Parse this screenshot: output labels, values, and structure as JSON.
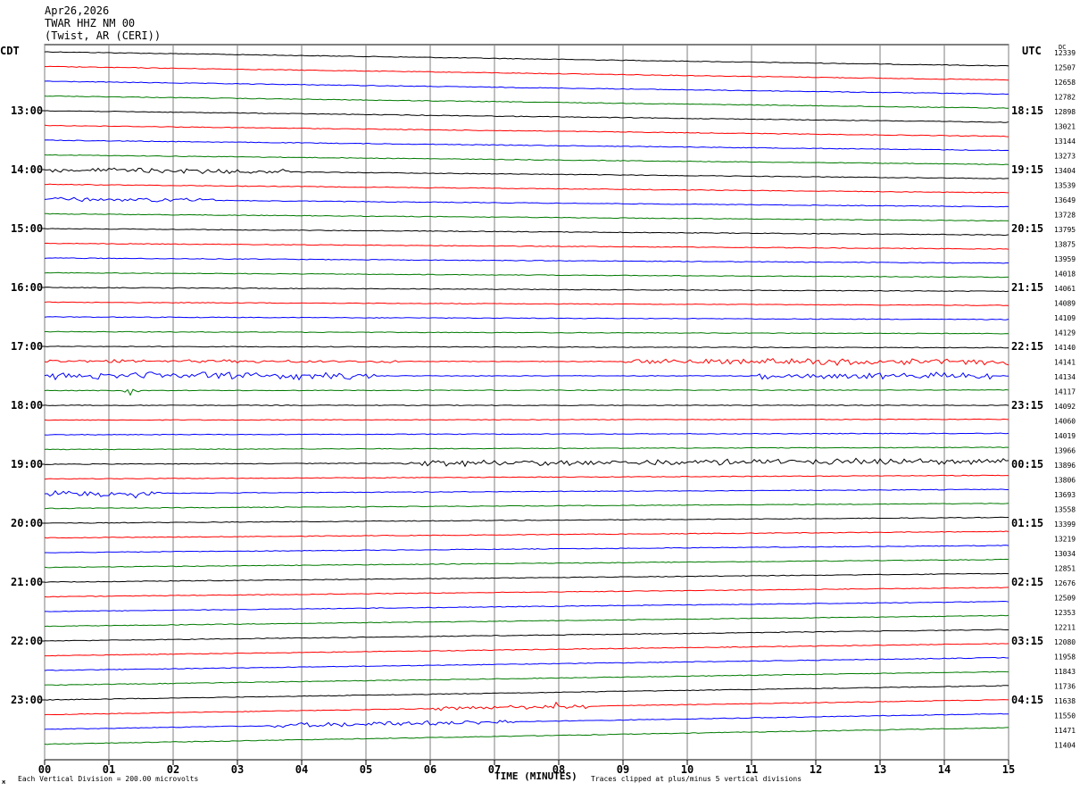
{
  "header": {
    "date": "Apr26,2026",
    "station": "TWAR HHZ NM 00",
    "location": "(Twist, AR (CERI))"
  },
  "labels": {
    "left_tz": "CDT",
    "right_tz": "UTC",
    "dc": "DC",
    "corner_mark": "ж"
  },
  "chart_data": {
    "type": "line",
    "xlabel": "TIME (MINUTES)",
    "xlim": [
      0,
      15
    ],
    "x_ticks": [
      "00",
      "01",
      "02",
      "03",
      "04",
      "05",
      "06",
      "07",
      "08",
      "09",
      "10",
      "11",
      "12",
      "13",
      "14",
      "15"
    ],
    "trace_colors": [
      "#000000",
      "#ff0000",
      "#0000ff",
      "#007a00"
    ],
    "left_hour_labels": [
      "13:00",
      "14:00",
      "15:00",
      "16:00",
      "17:00",
      "18:00",
      "19:00",
      "20:00",
      "21:00",
      "22:00",
      "23:00"
    ],
    "right_hour_labels": [
      "18:15",
      "19:15",
      "20:15",
      "21:15",
      "22:15",
      "23:15",
      "00:15",
      "01:15",
      "02:15",
      "03:15",
      "04:15"
    ],
    "dc_offsets": [
      12339,
      12507,
      12658,
      12782,
      12898,
      13021,
      13144,
      13273,
      13404,
      13539,
      13649,
      13728,
      13795,
      13875,
      13959,
      14018,
      14061,
      14089,
      14109,
      14129,
      14140,
      14141,
      14134,
      14117,
      14092,
      14060,
      14019,
      13966,
      13896,
      13806,
      13693,
      13558,
      13399,
      13219,
      13034,
      12851,
      12676,
      12509,
      12353,
      12211,
      12080,
      11958,
      11843,
      11736,
      11638,
      11550,
      11471,
      11404
    ]
  },
  "footer": {
    "vertical_division": "Each Vertical Division =  200.00 microvolts",
    "clip_note": "Traces clipped at plus/minus 5 vertical divisions"
  }
}
